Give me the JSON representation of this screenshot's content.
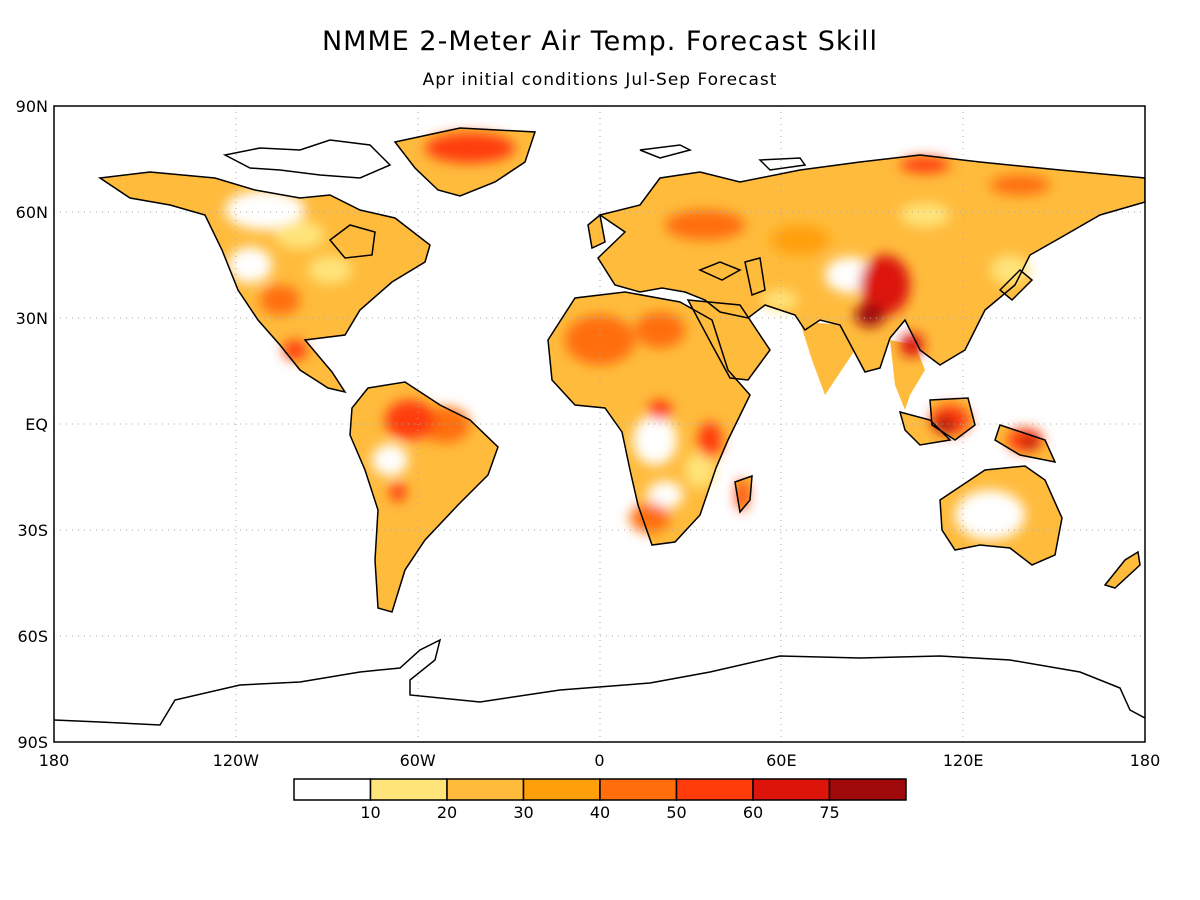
{
  "title": "NMME 2-Meter Air Temp. Forecast Skill",
  "subtitle": "Apr initial conditions   Jul-Sep Forecast",
  "map": {
    "lat_labels": [
      {
        "label": "90N",
        "lat": 90
      },
      {
        "label": "60N",
        "lat": 60
      },
      {
        "label": "30N",
        "lat": 30
      },
      {
        "label": "EQ",
        "lat": 0
      },
      {
        "label": "30S",
        "lat": -30
      },
      {
        "label": "60S",
        "lat": -60
      },
      {
        "label": "90S",
        "lat": -90
      }
    ],
    "lon_labels": [
      {
        "label": "180",
        "lon": -180
      },
      {
        "label": "120W",
        "lon": -120
      },
      {
        "label": "60W",
        "lon": -60
      },
      {
        "label": "0",
        "lon": 0
      },
      {
        "label": "60E",
        "lon": 60
      },
      {
        "label": "120E",
        "lon": 120
      },
      {
        "label": "180",
        "lon": 180
      }
    ],
    "gridlines": true,
    "projection": "equirectangular"
  },
  "colorbar": {
    "colors": [
      "#ffffff",
      "#ffe47a",
      "#ffbb3c",
      "#ffa00a",
      "#ff6e0a",
      "#ff3c0a",
      "#dc140a",
      "#a00a0a"
    ],
    "labels": [
      "10",
      "20",
      "30",
      "40",
      "50",
      "60",
      "75"
    ]
  }
}
